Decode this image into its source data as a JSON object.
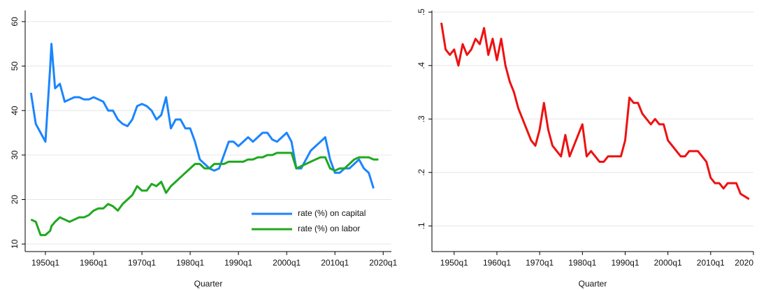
{
  "chart_data": [
    {
      "type": "line",
      "xlabel": "Quarter",
      "grid": true,
      "legend": "lower right",
      "xlim": [
        1945.8,
        2021.7
      ],
      "ylim": [
        8.3,
        62.5
      ],
      "xticks": [
        {
          "value": 1950,
          "label": "1950q1"
        },
        {
          "value": 1960,
          "label": "1960q1"
        },
        {
          "value": 1970,
          "label": "1970q1"
        },
        {
          "value": 1980,
          "label": "1980q1"
        },
        {
          "value": 1990,
          "label": "1990q1"
        },
        {
          "value": 2000,
          "label": "2000q1"
        },
        {
          "value": 2010,
          "label": "2010q1"
        },
        {
          "value": 2020,
          "label": "2020q1"
        }
      ],
      "yticks": [
        10,
        20,
        30,
        40,
        50,
        60
      ],
      "x": [
        1947,
        1948,
        1949,
        1950,
        1951,
        1951.25,
        1952,
        1953,
        1954,
        1955,
        1956,
        1957,
        1958,
        1959,
        1960,
        1961,
        1962,
        1963,
        1964,
        1965,
        1966,
        1967,
        1968,
        1969,
        1970,
        1971,
        1972,
        1973,
        1974,
        1975,
        1976,
        1977,
        1978,
        1979,
        1980,
        1981,
        1982,
        1983,
        1984,
        1985,
        1986,
        1987,
        1988,
        1989,
        1990,
        1991,
        1992,
        1993,
        1994,
        1995,
        1996,
        1997,
        1998,
        1999,
        2000,
        2001,
        2002,
        2003,
        2004,
        2005,
        2006,
        2007,
        2008,
        2009,
        2010,
        2011,
        2012,
        2013,
        2014,
        2015,
        2016,
        2017,
        2018,
        2019
      ],
      "series": [
        {
          "name": "rate (%) on capital",
          "color": "#1a85ff",
          "values": [
            44,
            37,
            35,
            33,
            50,
            55,
            45,
            46,
            42,
            42.5,
            43,
            43,
            42.5,
            42.5,
            43,
            42.5,
            42,
            40,
            40,
            38,
            37,
            36.5,
            38,
            41,
            41.5,
            41,
            40,
            38,
            39,
            43,
            36,
            38,
            38,
            36,
            36,
            33,
            29,
            28,
            27,
            26.5,
            27,
            30,
            33,
            33,
            32,
            33,
            34,
            33,
            34,
            35,
            35,
            33.5,
            33,
            34,
            35,
            33,
            27,
            27,
            29,
            31,
            32,
            33,
            34,
            29,
            26,
            26,
            27,
            27,
            28,
            29,
            27,
            26,
            22.5,
            null
          ]
        },
        {
          "name": "rate (%) on labor",
          "color": "#1fa81f",
          "values": [
            15.5,
            15,
            12,
            12,
            13,
            14,
            15,
            16,
            15.5,
            15,
            15.5,
            16,
            16,
            16.5,
            17.5,
            18,
            18,
            19,
            18.5,
            17.5,
            19,
            20,
            21,
            23,
            22,
            22,
            23.5,
            23,
            24,
            21.5,
            23,
            24,
            25,
            26,
            27,
            28,
            28,
            27,
            27,
            28,
            28,
            28,
            28.5,
            28.5,
            28.5,
            28.5,
            29,
            29,
            29.5,
            29.5,
            30,
            30,
            30.5,
            30.5,
            30.5,
            30.5,
            27,
            27.5,
            28,
            28.5,
            29,
            29.5,
            29.5,
            27,
            26.5,
            27,
            27,
            28,
            29,
            29.5,
            29.5,
            29.5,
            29,
            29
          ]
        }
      ]
    },
    {
      "type": "line",
      "xlabel": "Quarter",
      "grid": true,
      "xlim": [
        1944.8,
        2020
      ],
      "ylim": [
        0.052,
        0.503
      ],
      "xticks": [
        {
          "value": 1950,
          "label": "1950q1"
        },
        {
          "value": 1960,
          "label": "1960q1"
        },
        {
          "value": 1970,
          "label": "1970q1"
        },
        {
          "value": 1980,
          "label": "1980q1"
        },
        {
          "value": 1990,
          "label": "1990q1"
        },
        {
          "value": 2000,
          "label": "2000q1"
        },
        {
          "value": 2010,
          "label": "2010q1"
        },
        2020
      ],
      "yticks": [
        {
          "value": 0.1,
          "label": ".1"
        },
        {
          "value": 0.2,
          "label": ".2"
        },
        {
          "value": 0.3,
          "label": ".3"
        },
        {
          "value": 0.4,
          "label": ".4"
        },
        {
          "value": 0.5,
          "label": ".5"
        }
      ],
      "x": [
        1947,
        1948,
        1949,
        1950,
        1951,
        1952,
        1953,
        1954,
        1955,
        1956,
        1957,
        1958,
        1959,
        1960,
        1961,
        1962,
        1963,
        1964,
        1965,
        1966,
        1967,
        1968,
        1969,
        1970,
        1971,
        1972,
        1973,
        1974,
        1975,
        1976,
        1977,
        1978,
        1979,
        1980,
        1981,
        1982,
        1983,
        1984,
        1985,
        1986,
        1987,
        1988,
        1989,
        1990,
        1991,
        1992,
        1993,
        1994,
        1995,
        1996,
        1997,
        1998,
        1999,
        2000,
        2001,
        2002,
        2003,
        2004,
        2005,
        2006,
        2007,
        2008,
        2009,
        2010,
        2011,
        2012,
        2013,
        2014,
        2015,
        2016,
        2017,
        2018,
        2019
      ],
      "series": [
        {
          "color": "#ee1111",
          "values": [
            0.48,
            0.43,
            0.42,
            0.43,
            0.4,
            0.44,
            0.42,
            0.43,
            0.45,
            0.44,
            0.47,
            0.42,
            0.45,
            0.41,
            0.45,
            0.4,
            0.37,
            0.35,
            0.32,
            0.3,
            0.28,
            0.26,
            0.25,
            0.28,
            0.33,
            0.28,
            0.25,
            0.24,
            0.23,
            0.27,
            0.23,
            0.25,
            0.27,
            0.29,
            0.23,
            0.24,
            0.23,
            0.22,
            0.22,
            0.23,
            0.23,
            0.23,
            0.23,
            0.26,
            0.34,
            0.33,
            0.33,
            0.31,
            0.3,
            0.29,
            0.3,
            0.29,
            0.29,
            0.26,
            0.25,
            0.24,
            0.23,
            0.23,
            0.24,
            0.24,
            0.24,
            0.23,
            0.22,
            0.19,
            0.18,
            0.18,
            0.17,
            0.18,
            0.18,
            0.18,
            0.16,
            0.155,
            0.15
          ]
        }
      ]
    }
  ]
}
